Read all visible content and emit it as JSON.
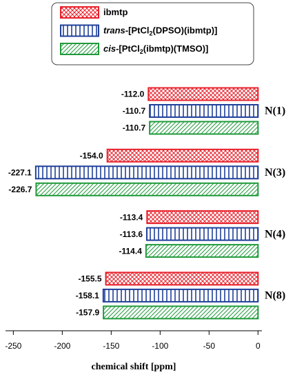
{
  "chart_data": {
    "type": "bar",
    "orientation": "horizontal",
    "x_label": "chemical shift [ppm]",
    "categories": [
      "N(1)",
      "N(3)",
      "N(4)",
      "N(8)"
    ],
    "series": [
      {
        "name": "ibmtp",
        "color": "#e8212b",
        "values": [
          -112.0,
          -154.0,
          -113.4,
          -155.5
        ],
        "value_labels": [
          "-112.0",
          "-154.0",
          "-113.4",
          "-155.5"
        ]
      },
      {
        "name": "trans-[PtCl2(DPSO)(ibmtp)]",
        "color": "#1f3f9a",
        "values": [
          -110.7,
          -227.1,
          -113.6,
          -158.1
        ],
        "value_labels": [
          "-110.7",
          "-227.1",
          "-113.6",
          "-158.1"
        ]
      },
      {
        "name": "cis-[PtCl2(ibmtp)(TMSO)]",
        "color": "#1f9a3a",
        "values": [
          -110.7,
          -226.7,
          -114.4,
          -157.9
        ],
        "value_labels": [
          "-110.7",
          "-226.7",
          "-114.4",
          "-157.9"
        ]
      }
    ],
    "xlim": [
      -258,
      4
    ],
    "xticks": [
      -250,
      -200,
      -150,
      -100,
      -50,
      0
    ]
  }
}
